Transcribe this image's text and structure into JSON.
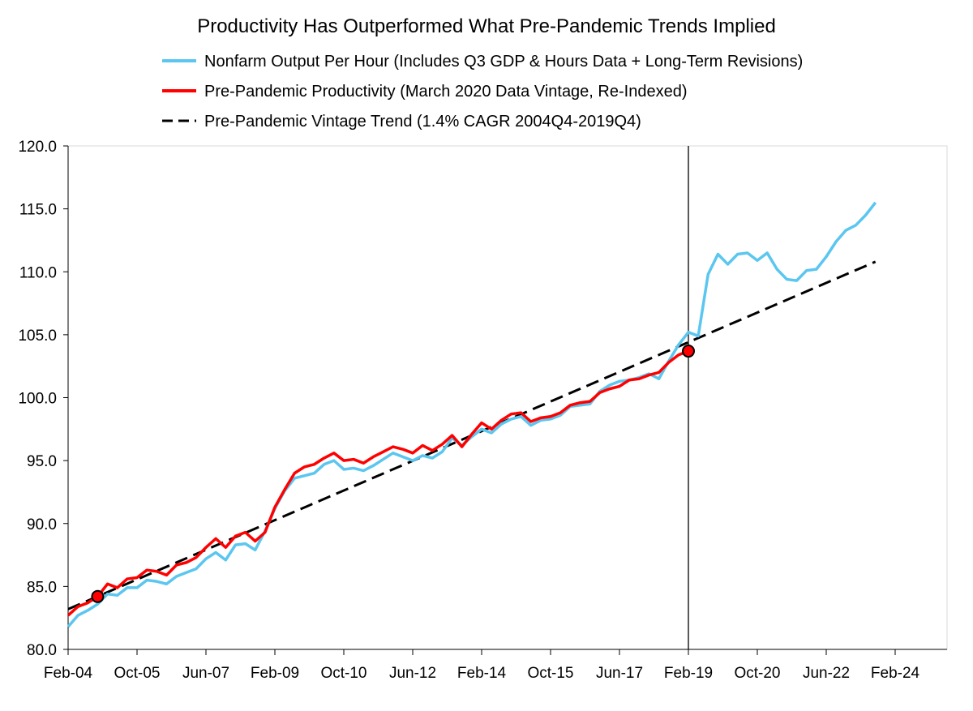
{
  "chart_data": {
    "type": "line",
    "title": "Productivity Has Outperformed What Pre-Pandemic Trends Implied",
    "xlabel": "",
    "ylabel": "",
    "ylim": [
      80,
      120
    ],
    "y_ticks": [
      "80.0",
      "85.0",
      "90.0",
      "95.0",
      "100.0",
      "105.0",
      "110.0",
      "115.0",
      "120.0"
    ],
    "x_ticks": [
      "Feb-04",
      "Oct-05",
      "Jun-07",
      "Feb-09",
      "Oct-10",
      "Jun-12",
      "Feb-14",
      "Oct-15",
      "Jun-17",
      "Feb-19",
      "Oct-20",
      "Jun-22",
      "Feb-24"
    ],
    "x_start": "Feb-04",
    "frequency": "quarterly",
    "grid": false,
    "legend_position": "top",
    "vertical_marker": "Q4-2019",
    "series": [
      {
        "name": "Nonfarm Output Per Hour (Includes Q3 GDP & Hours Data + Long-Term Revisions)",
        "color": "#5bc6ef",
        "style": "solid",
        "values": [
          81.8,
          82.7,
          83.1,
          83.6,
          84.4,
          84.3,
          84.9,
          84.9,
          85.5,
          85.4,
          85.2,
          85.8,
          86.1,
          86.4,
          87.2,
          87.7,
          87.1,
          88.3,
          88.4,
          87.9,
          89.4,
          91.2,
          92.6,
          93.6,
          93.8,
          94.0,
          94.7,
          95.0,
          94.3,
          94.4,
          94.2,
          94.6,
          95.1,
          95.6,
          95.3,
          95.0,
          95.4,
          95.2,
          95.7,
          96.8,
          96.2,
          96.9,
          97.5,
          97.2,
          97.9,
          98.3,
          98.5,
          97.8,
          98.2,
          98.3,
          98.6,
          99.3,
          99.4,
          99.5,
          100.5,
          101.0,
          101.3,
          101.4,
          101.6,
          101.9,
          101.5,
          102.9,
          104.2,
          105.2,
          104.9,
          109.8,
          111.4,
          110.6,
          111.4,
          111.5,
          110.9,
          111.5,
          110.2,
          109.4,
          109.3,
          110.1,
          110.2,
          111.2,
          112.4,
          113.3,
          113.7,
          114.5,
          115.5
        ]
      },
      {
        "name": "Pre-Pandemic Productivity (March 2020 Data Vintage, Re-Indexed)",
        "color": "#ff0000",
        "style": "solid",
        "values": [
          82.7,
          83.4,
          83.7,
          84.2,
          85.2,
          84.9,
          85.6,
          85.7,
          86.3,
          86.2,
          85.9,
          86.7,
          86.9,
          87.3,
          88.1,
          88.8,
          88.1,
          89.0,
          89.3,
          88.6,
          89.3,
          91.3,
          92.7,
          94.0,
          94.5,
          94.7,
          95.2,
          95.6,
          95.0,
          95.1,
          94.8,
          95.3,
          95.7,
          96.1,
          95.9,
          95.6,
          96.2,
          95.8,
          96.3,
          97.0,
          96.1,
          97.1,
          98.0,
          97.5,
          98.2,
          98.7,
          98.8,
          98.1,
          98.4,
          98.5,
          98.8,
          99.4,
          99.6,
          99.7,
          100.4,
          100.7,
          100.9,
          101.4,
          101.5,
          101.8,
          102.0,
          102.8,
          103.4,
          103.7
        ]
      },
      {
        "name": "Pre-Pandemic Vintage Trend (1.4% CAGR 2004Q4-2019Q4)",
        "color": "#000000",
        "style": "dashed",
        "values": [
          83.2,
          110.8
        ]
      }
    ],
    "markers": [
      {
        "series": 1,
        "index": 3,
        "value": 84.2
      },
      {
        "series": 1,
        "index": 63,
        "value": 103.7
      }
    ]
  }
}
